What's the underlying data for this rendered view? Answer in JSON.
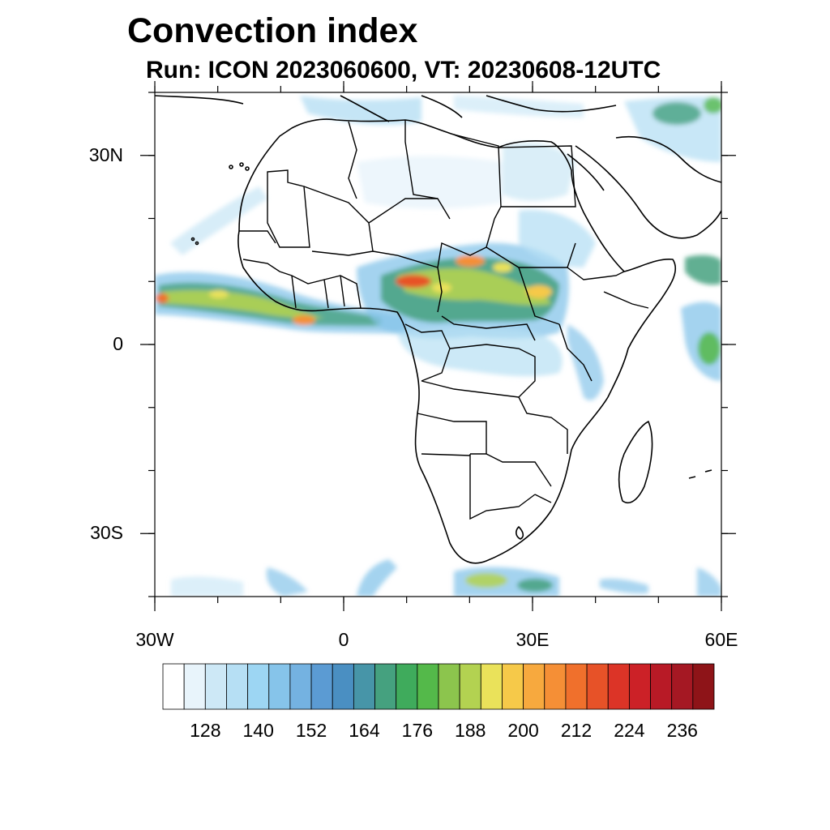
{
  "title": "Convection index",
  "subtitle": "Run: ICON 2023060600,  VT: 20230608-12UTC",
  "map": {
    "projection": "cylindrical equidistant",
    "lon_range": [
      -30,
      60
    ],
    "lat_range": [
      -40,
      40
    ],
    "lat_tick_labels": [
      {
        "lat": 30,
        "label": "30N"
      },
      {
        "lat": 0,
        "label": "0"
      },
      {
        "lat": -30,
        "label": "30S"
      }
    ],
    "lon_tick_labels": [
      {
        "lon": -30,
        "label": "30W"
      },
      {
        "lon": 0,
        "label": "0"
      },
      {
        "lon": 30,
        "label": "30E"
      },
      {
        "lon": 60,
        "label": "60E"
      }
    ],
    "minor_tick_step_deg": 10
  },
  "colorbar": {
    "colors": [
      "#ffffff",
      "#e8f4fb",
      "#cde8f6",
      "#b6dff4",
      "#9dd6f3",
      "#86c4ea",
      "#74b2e1",
      "#5b9bd3",
      "#4a8fc2",
      "#4795a8",
      "#45a17f",
      "#3fab5c",
      "#54b94a",
      "#8cc54d",
      "#b3d251",
      "#eae25a",
      "#f6c949",
      "#f7a93e",
      "#f58f36",
      "#f0702c",
      "#e75228",
      "#dc3427",
      "#cc2127",
      "#b81a26",
      "#a51823",
      "#8e1418"
    ],
    "tick_labels": [
      "128",
      "140",
      "152",
      "164",
      "176",
      "188",
      "200",
      "212",
      "224",
      "236"
    ]
  }
}
